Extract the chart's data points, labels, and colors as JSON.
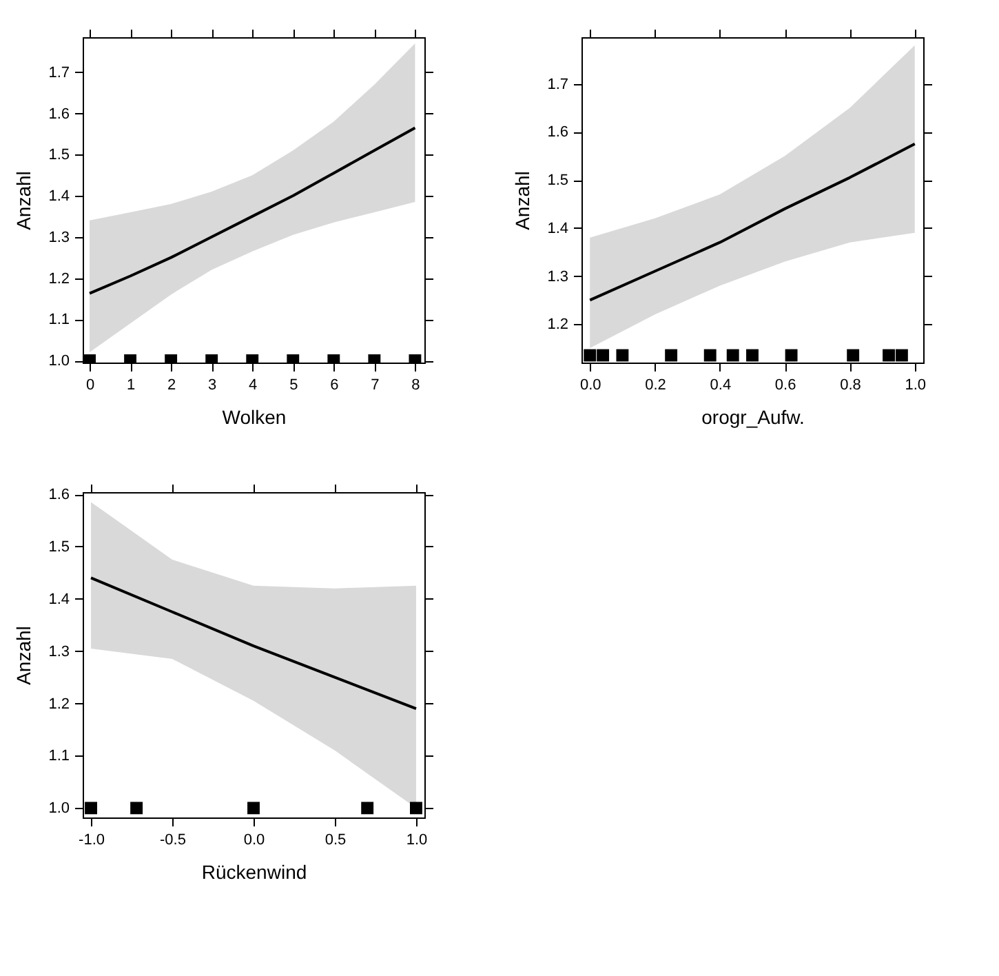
{
  "chart_data": [
    {
      "type": "line",
      "xlabel": "Wolken",
      "ylabel": "Anzahl",
      "xlim": [
        -0.17,
        8.23
      ],
      "ylim": [
        0.995,
        1.785
      ],
      "xticks": [
        0,
        1,
        2,
        3,
        4,
        5,
        6,
        7,
        8
      ],
      "yticks": [
        {
          "value": 1,
          "label": "1.0"
        },
        1.1,
        1.2,
        1.3,
        1.4,
        1.5,
        1.6,
        1.7
      ],
      "series": [
        {
          "color": "#000000",
          "x": [
            0,
            1,
            2,
            3,
            4,
            5,
            6,
            7,
            8
          ],
          "values": [
            1.163,
            1.205,
            1.25,
            1.3,
            1.35,
            1.4,
            1.455,
            1.51,
            1.565
          ],
          "lower": [
            1.02,
            1.09,
            1.16,
            1.22,
            1.265,
            1.305,
            1.335,
            1.36,
            1.385
          ],
          "upper": [
            1.34,
            1.36,
            1.38,
            1.41,
            1.45,
            1.51,
            1.58,
            1.67,
            1.77
          ]
        },
        {
          "type": "scatter",
          "marker": "square",
          "color": "#000000",
          "x": [
            0,
            1,
            2,
            3,
            4,
            5,
            6,
            7,
            8
          ],
          "values": [
            1.0,
            1.0,
            1.0,
            1.0,
            1.0,
            1.0,
            1.0,
            1.0,
            1.0
          ]
        }
      ]
    },
    {
      "type": "line",
      "xlabel": "orogr_Aufw.",
      "ylabel": "Anzahl",
      "xlim": [
        -0.026,
        1.026
      ],
      "ylim": [
        1.12,
        1.797
      ],
      "xticks": [
        {
          "value": 0,
          "label": "0.0"
        },
        0.2,
        0.4,
        0.6,
        0.8,
        {
          "value": 1,
          "label": "1.0"
        }
      ],
      "yticks": [
        1.2,
        1.3,
        1.4,
        1.5,
        1.6,
        1.7
      ],
      "series": [
        {
          "color": "#000000",
          "x": [
            0,
            0.2,
            0.4,
            0.6,
            0.8,
            1.0
          ],
          "values": [
            1.25,
            1.31,
            1.37,
            1.44,
            1.505,
            1.575
          ],
          "lower": [
            1.15,
            1.22,
            1.28,
            1.33,
            1.37,
            1.39
          ],
          "upper": [
            1.38,
            1.42,
            1.47,
            1.55,
            1.65,
            1.78
          ]
        },
        {
          "type": "scatter",
          "marker": "square",
          "color": "#000000",
          "x": [
            0,
            0.04,
            0.1,
            0.25,
            0.37,
            0.44,
            0.5,
            0.62,
            0.81,
            0.92,
            0.96
          ],
          "values": [
            1.135,
            1.135,
            1.135,
            1.135,
            1.135,
            1.135,
            1.135,
            1.135,
            1.135,
            1.135,
            1.135
          ]
        }
      ]
    },
    {
      "type": "line",
      "xlabel": "Rückenwind",
      "ylabel": "Anzahl",
      "xlim": [
        -1.051,
        1.051
      ],
      "ylim": [
        0.982,
        1.604
      ],
      "xticks": [
        {
          "value": -1,
          "label": "-1.0"
        },
        {
          "value": -0.5,
          "label": "-0.5"
        },
        {
          "value": 0,
          "label": "0.0"
        },
        0.5,
        {
          "value": 1,
          "label": "1.0"
        }
      ],
      "yticks": [
        {
          "value": 1,
          "label": "1.0"
        },
        1.1,
        1.2,
        1.3,
        1.4,
        1.5,
        1.6
      ],
      "series": [
        {
          "color": "#000000",
          "x": [
            -1,
            -0.5,
            0,
            0.5,
            1
          ],
          "values": [
            1.44,
            1.375,
            1.31,
            1.25,
            1.19
          ],
          "lower": [
            1.305,
            1.285,
            1.205,
            1.11,
            1.0
          ],
          "upper": [
            1.585,
            1.475,
            1.425,
            1.42,
            1.425
          ]
        },
        {
          "type": "scatter",
          "marker": "square",
          "color": "#000000",
          "x": [
            -1,
            -0.72,
            0,
            0.7,
            1
          ],
          "values": [
            1.0,
            1.0,
            1.0,
            1.0,
            1.0
          ]
        }
      ]
    }
  ]
}
